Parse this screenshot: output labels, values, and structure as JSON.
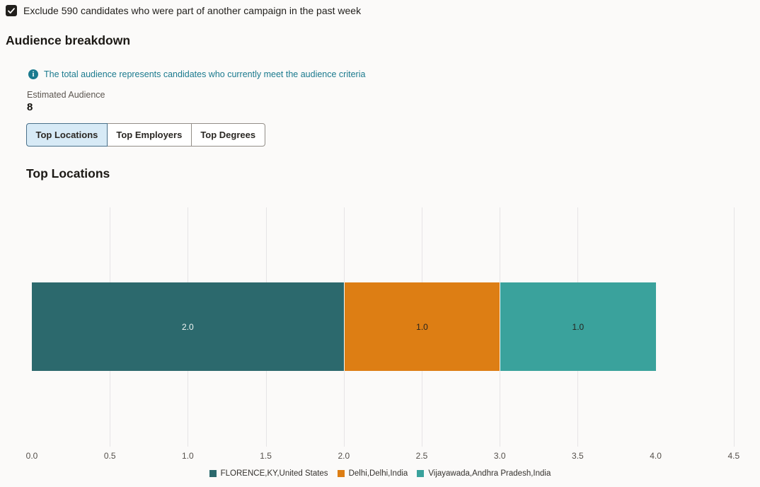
{
  "exclude_option": {
    "checked": true,
    "label": "Exclude 590 candidates who were part of another campaign in the past week"
  },
  "audience_breakdown": {
    "title": "Audience breakdown",
    "info_text": "The total audience represents candidates who currently meet the audience criteria",
    "estimated_audience_label": "Estimated Audience",
    "estimated_audience_value": "8"
  },
  "icons": {
    "info_glyph": "i"
  },
  "tabs": [
    {
      "label": "Top Locations",
      "selected": true
    },
    {
      "label": "Top Employers",
      "selected": false
    },
    {
      "label": "Top Degrees",
      "selected": false
    }
  ],
  "chart_section_title": "Top Locations",
  "colors": {
    "accent_teal_dark": "#2c696d",
    "accent_orange": "#dd7e14",
    "accent_teal": "#3aa29c",
    "info_teal": "#1b7a8e",
    "selected_tab_bg": "#d7eaf6"
  },
  "chart_data": {
    "type": "bar",
    "orientation": "horizontal-stacked",
    "title": "Top Locations",
    "xlabel": "",
    "ylabel": "",
    "x_range": [
      0,
      4.5
    ],
    "grid": true,
    "legend_position": "bottom",
    "series": [
      {
        "name": "FLORENCE,KY,United States",
        "value": 2.0,
        "data_label": "2.0",
        "color": "#2c696d",
        "label_color": "#f2f6f5"
      },
      {
        "name": "Delhi,Delhi,India",
        "value": 1.0,
        "data_label": "1.0",
        "color": "#dd7e14",
        "label_color": "#25221e"
      },
      {
        "name": "Vijayawada,Andhra Pradesh,India",
        "value": 1.0,
        "data_label": "1.0",
        "color": "#3aa29c",
        "label_color": "#25221e"
      }
    ],
    "x_ticks": [
      {
        "label": "0.0",
        "value": 0.0
      },
      {
        "label": "0.5",
        "value": 0.5
      },
      {
        "label": "1.0",
        "value": 1.0
      },
      {
        "label": "1.5",
        "value": 1.5
      },
      {
        "label": "2.0",
        "value": 2.0
      },
      {
        "label": "2.5",
        "value": 2.5
      },
      {
        "label": "3.0",
        "value": 3.0
      },
      {
        "label": "3.5",
        "value": 3.5
      },
      {
        "label": "4.0",
        "value": 4.0
      },
      {
        "label": "4.5",
        "value": 4.5
      }
    ],
    "gridline_values": [
      0.5,
      1.0,
      1.5,
      2.0,
      2.5,
      3.0,
      3.5,
      4.5
    ]
  }
}
